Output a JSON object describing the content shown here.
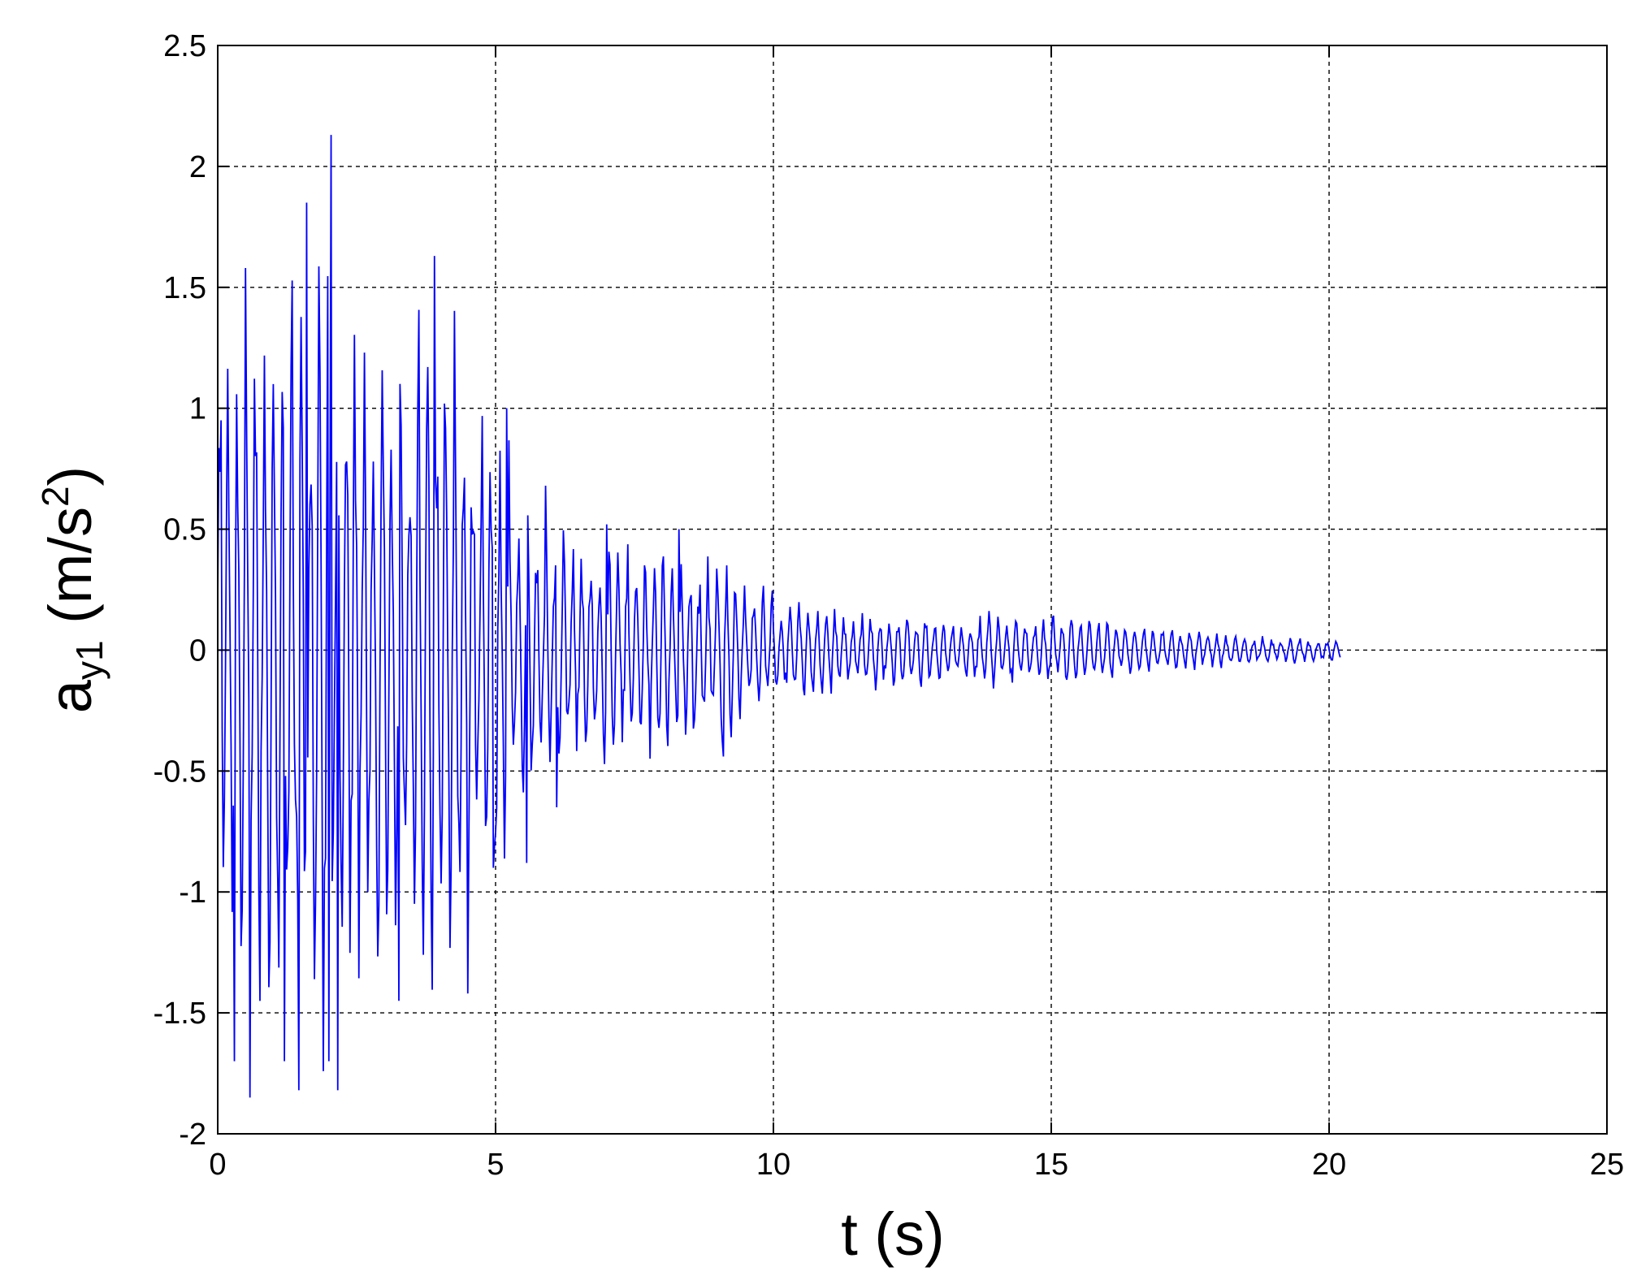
{
  "chart_data": {
    "type": "line",
    "title": "",
    "xlabel": "t (s)",
    "ylabel": {
      "base": "a",
      "sub": "y1",
      "unit_prefix": "(m/s",
      "unit_sup": "2",
      "unit_suffix": ")"
    },
    "xlim": [
      0,
      25
    ],
    "ylim": [
      -2,
      2.5
    ],
    "xticks": [
      0,
      5,
      10,
      15,
      20,
      25
    ],
    "xtick_labels": [
      "0",
      "5",
      "10",
      "15",
      "20",
      "25"
    ],
    "yticks": [
      -2,
      -1.5,
      -1,
      -0.5,
      0,
      0.5,
      1,
      1.5,
      2,
      2.5
    ],
    "ytick_labels": [
      "-2",
      "-1.5",
      "-1",
      "-0.5",
      "0",
      "0.5",
      "1",
      "1.5",
      "2",
      "2.5"
    ],
    "grid": true,
    "legend": "none",
    "colors": {
      "series": "#0000ff",
      "grid": "#000000",
      "axes": "#000000"
    },
    "series": [
      {
        "name": "",
        "sample_interval": 0.02,
        "duration": 20.2,
        "envelope": [
          {
            "t": 0.0,
            "peak": 1.0
          },
          {
            "t": 0.3,
            "peak": 1.4
          },
          {
            "t": 0.6,
            "peak": 1.6
          },
          {
            "t": 1.0,
            "peak": 1.5
          },
          {
            "t": 1.5,
            "peak": 1.75
          },
          {
            "t": 2.0,
            "peak": 1.95
          },
          {
            "t": 2.5,
            "peak": 1.5
          },
          {
            "t": 3.0,
            "peak": 1.3
          },
          {
            "t": 3.5,
            "peak": 1.4
          },
          {
            "t": 3.9,
            "peak": 1.6
          },
          {
            "t": 4.5,
            "peak": 1.3
          },
          {
            "t": 4.9,
            "peak": 1.15
          },
          {
            "t": 5.2,
            "peak": 0.95
          },
          {
            "t": 5.6,
            "peak": 0.7
          },
          {
            "t": 6.2,
            "peak": 0.55
          },
          {
            "t": 7.0,
            "peak": 0.5
          },
          {
            "t": 8.0,
            "peak": 0.45
          },
          {
            "t": 9.0,
            "peak": 0.42
          },
          {
            "t": 10.0,
            "peak": 0.25
          },
          {
            "t": 11.0,
            "peak": 0.2
          },
          {
            "t": 12.0,
            "peak": 0.17
          },
          {
            "t": 13.0,
            "peak": 0.16
          },
          {
            "t": 14.0,
            "peak": 0.17
          },
          {
            "t": 15.0,
            "peak": 0.16
          },
          {
            "t": 16.0,
            "peak": 0.13
          },
          {
            "t": 17.0,
            "peak": 0.1
          },
          {
            "t": 18.0,
            "peak": 0.08
          },
          {
            "t": 19.0,
            "peak": 0.06
          },
          {
            "t": 20.2,
            "peak": 0.05
          }
        ],
        "peaks": [
          {
            "t": 0.06,
            "y": 0.95
          },
          {
            "t": 0.3,
            "y": -1.7
          },
          {
            "t": 0.5,
            "y": 1.58
          },
          {
            "t": 0.58,
            "y": -1.85
          },
          {
            "t": 1.0,
            "y": 1.1
          },
          {
            "t": 1.2,
            "y": -1.7
          },
          {
            "t": 1.45,
            "y": -1.82
          },
          {
            "t": 1.6,
            "y": 1.85
          },
          {
            "t": 2.05,
            "y": 2.13
          },
          {
            "t": 2.15,
            "y": -1.82
          },
          {
            "t": 2.0,
            "y": -1.7
          },
          {
            "t": 3.25,
            "y": -1.45
          },
          {
            "t": 3.9,
            "y": 1.63
          },
          {
            "t": 4.5,
            "y": -1.42
          },
          {
            "t": 4.95,
            "y": -0.9
          },
          {
            "t": 5.2,
            "y": 1.0
          },
          {
            "t": 5.55,
            "y": -0.88
          },
          {
            "t": 5.9,
            "y": 0.68
          },
          {
            "t": 6.1,
            "y": -0.65
          },
          {
            "t": 7.0,
            "y": 0.52
          },
          {
            "t": 8.3,
            "y": 0.5
          },
          {
            "t": 9.1,
            "y": 0.46
          },
          {
            "t": 9.1,
            "y": -0.44
          }
        ]
      }
    ]
  }
}
